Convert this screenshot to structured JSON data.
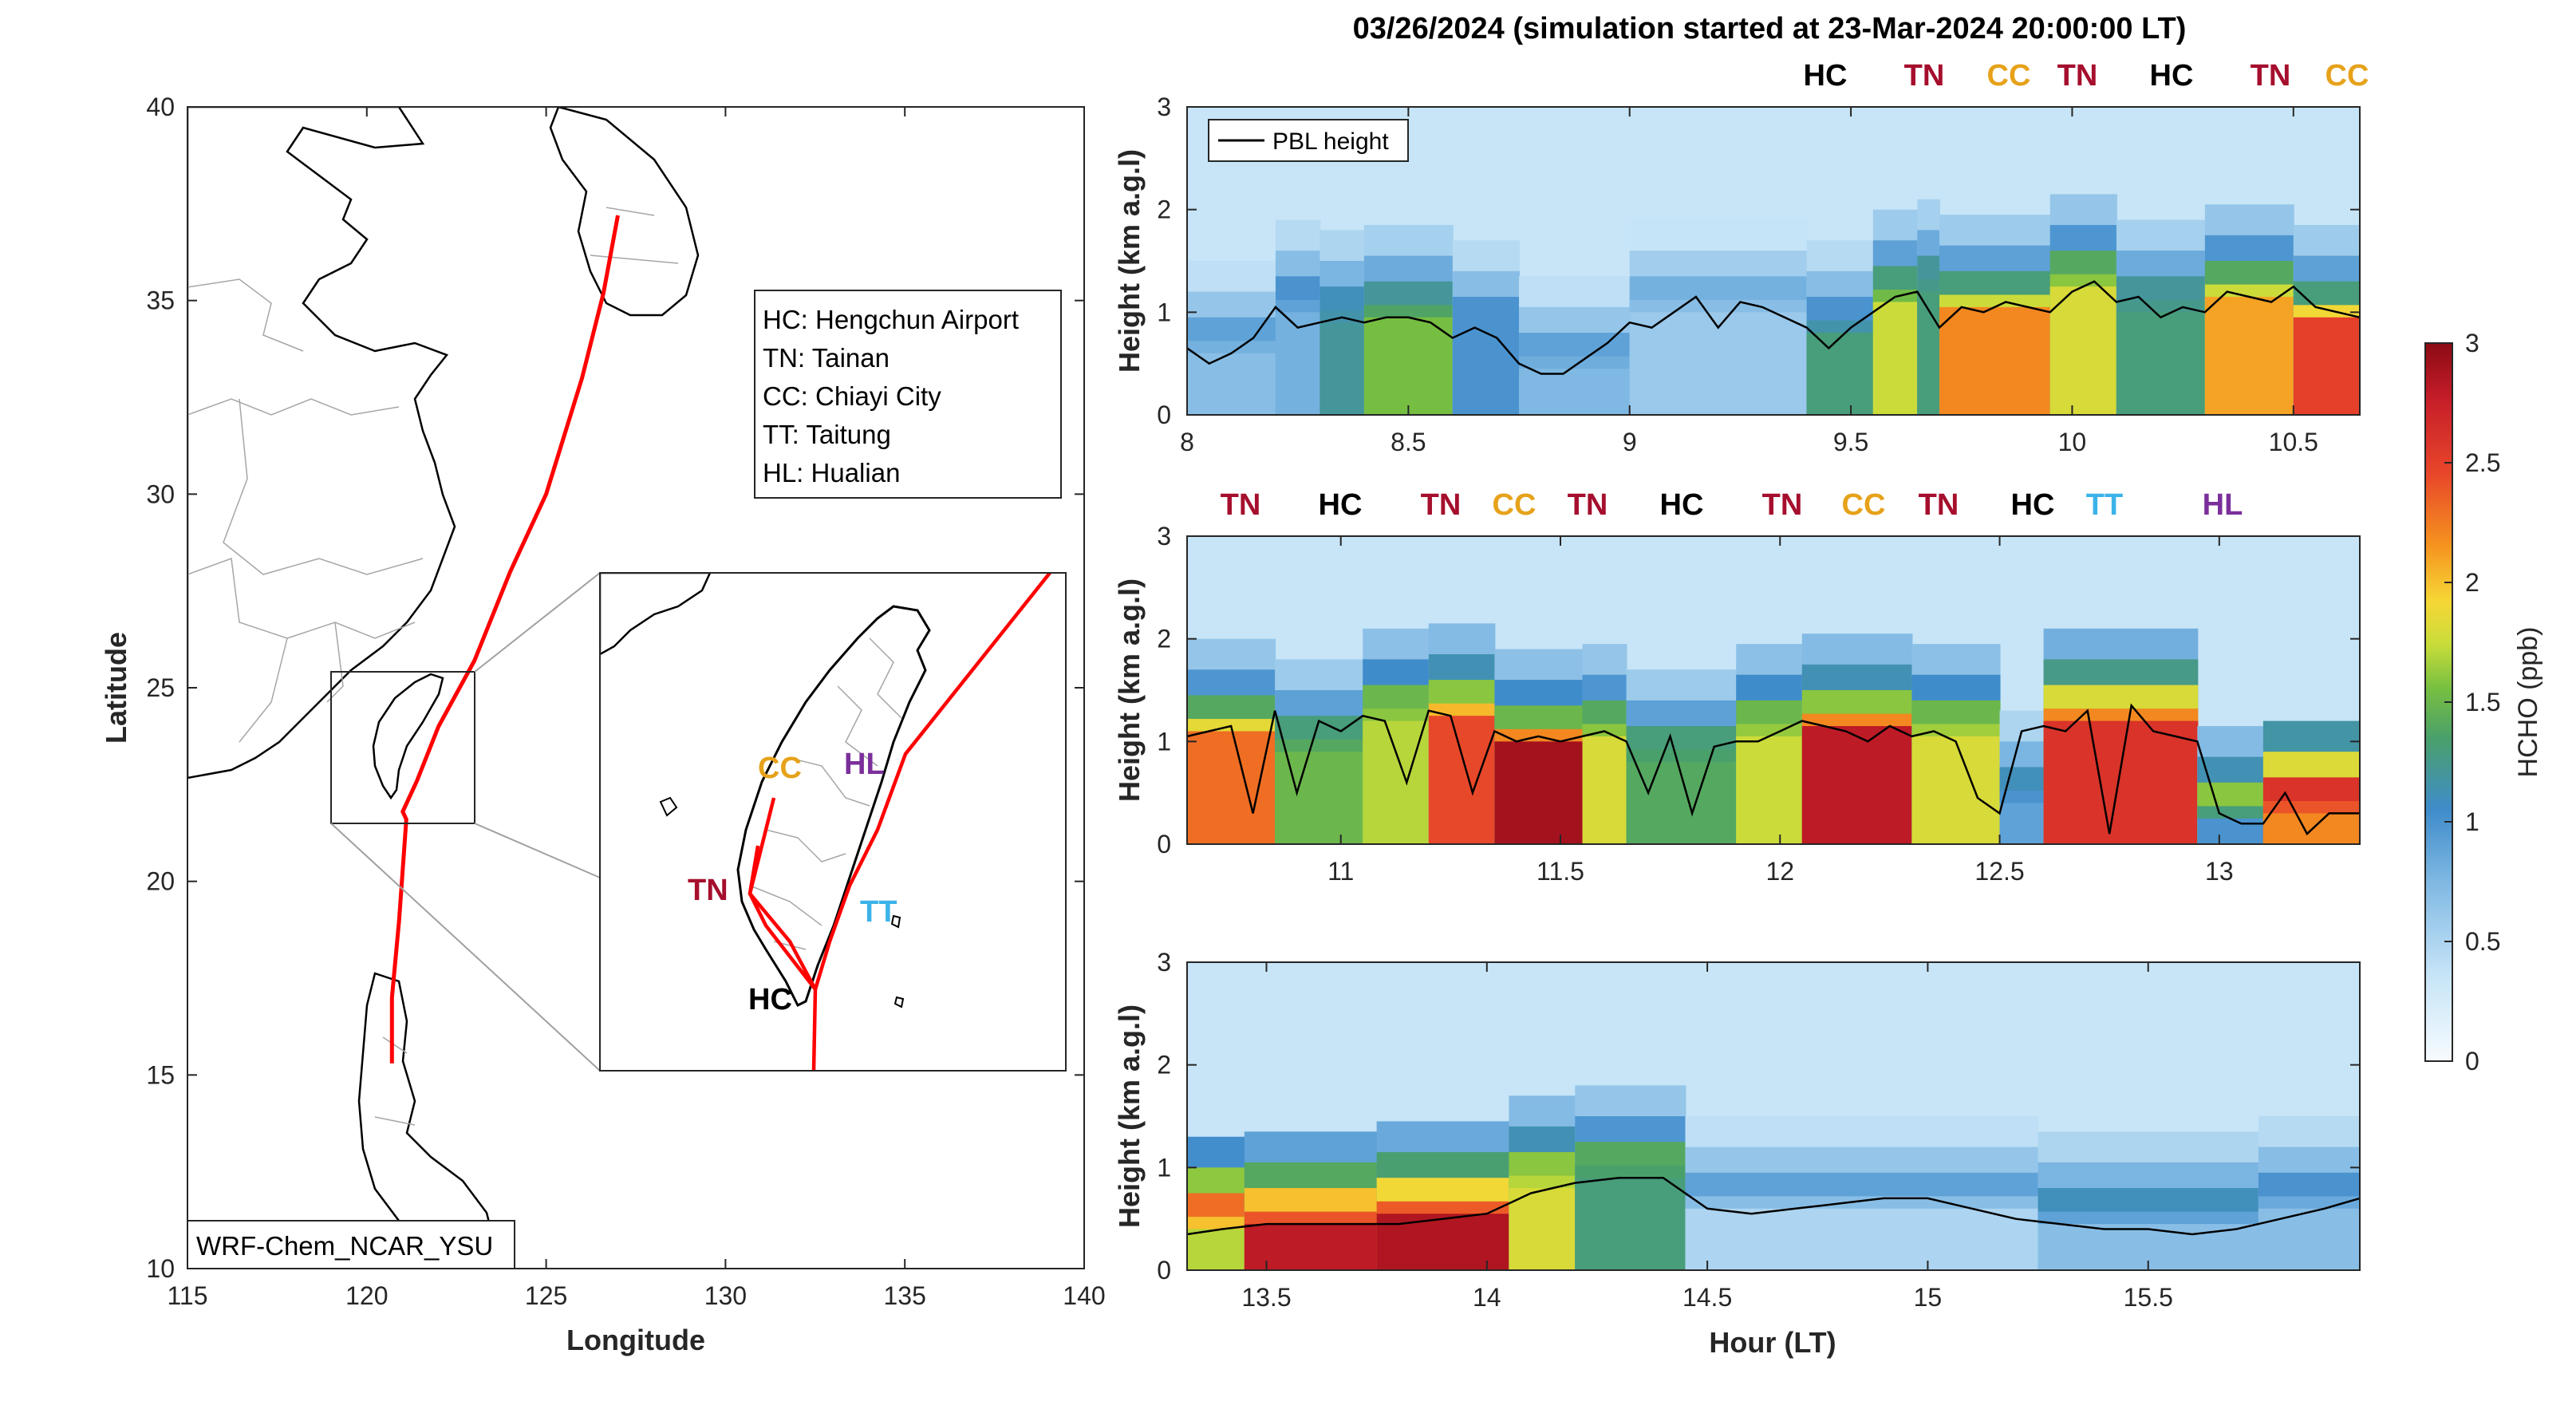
{
  "title": "03/26/2024 (simulation started at 23-Mar-2024 20:00:00 LT)",
  "colors": {
    "HC": "#000000",
    "TN": "#a50f2d",
    "CC": "#e6a21a",
    "TT": "#3bb3e8",
    "HL": "#7b2f9b",
    "track": "#ff0000",
    "pbl": "#000000"
  },
  "map": {
    "xlabel": "Longitude",
    "ylabel": "Latitude",
    "xlim": [
      115,
      140
    ],
    "ylim": [
      10,
      40
    ],
    "x_ticks": [
      "115",
      "120",
      "125",
      "130",
      "135",
      "140"
    ],
    "y_ticks": [
      "10",
      "15",
      "20",
      "25",
      "30",
      "35",
      "40"
    ],
    "model_label": "WRF-Chem_NCAR_YSU",
    "site_legend": [
      "HC: Hengchun Airport",
      "TN: Tainan",
      "CC: Chiayi City",
      "TT: Taitung",
      "HL: Hualian"
    ],
    "inset_sites": [
      {
        "code": "CC",
        "color_key": "CC"
      },
      {
        "code": "HL",
        "color_key": "HL"
      },
      {
        "code": "TN",
        "color_key": "TN"
      },
      {
        "code": "TT",
        "color_key": "TT"
      },
      {
        "code": "HC",
        "color_key": "HC"
      }
    ],
    "track": [
      [
        127.0,
        37.2
      ],
      [
        126.6,
        35.2
      ],
      [
        126.0,
        33.0
      ],
      [
        125.0,
        30.0
      ],
      [
        124.0,
        28.0
      ],
      [
        123.0,
        25.7
      ],
      [
        122.0,
        24.0
      ],
      [
        121.4,
        22.6
      ],
      [
        121.0,
        21.8
      ],
      [
        121.1,
        21.6
      ],
      [
        120.9,
        19.0
      ],
      [
        120.7,
        17.0
      ],
      [
        120.7,
        15.3
      ]
    ],
    "inset_track": [
      [
        139.0,
        28.5
      ],
      [
        125.0,
        24.6
      ],
      [
        122.0,
        23.4
      ],
      [
        121.1,
        22.0
      ],
      [
        120.9,
        21.4
      ]
    ]
  },
  "chart_data": [
    {
      "type": "heatmap",
      "xlabel": "",
      "ylabel": "Height (km a.g.l)",
      "xlim": [
        8,
        10.65
      ],
      "ylim": [
        0,
        3
      ],
      "x_ticks": [
        "8",
        "8.5",
        "9",
        "9.5",
        "10",
        "10.5"
      ],
      "y_ticks": [
        "0",
        "1",
        "2",
        "3"
      ],
      "legend": "PBL height",
      "sites": [
        "HC",
        "TN",
        "CC",
        "TN",
        "HC",
        "TN",
        "CC"
      ],
      "pbl_x": [
        8.0,
        8.05,
        8.1,
        8.15,
        8.2,
        8.25,
        8.3,
        8.35,
        8.4,
        8.45,
        8.5,
        8.55,
        8.6,
        8.65,
        8.7,
        8.75,
        8.8,
        8.85,
        8.9,
        8.95,
        9.0,
        9.05,
        9.1,
        9.15,
        9.2,
        9.25,
        9.3,
        9.35,
        9.4,
        9.45,
        9.5,
        9.55,
        9.6,
        9.65,
        9.7,
        9.75,
        9.8,
        9.85,
        9.9,
        9.95,
        10.0,
        10.05,
        10.1,
        10.15,
        10.2,
        10.25,
        10.3,
        10.35,
        10.4,
        10.45,
        10.5,
        10.55,
        10.6,
        10.65
      ],
      "pbl_y": [
        0.65,
        0.5,
        0.6,
        0.75,
        1.05,
        0.85,
        0.9,
        0.95,
        0.9,
        0.95,
        0.95,
        0.9,
        0.75,
        0.85,
        0.75,
        0.5,
        0.4,
        0.4,
        0.55,
        0.7,
        0.9,
        0.85,
        1.0,
        1.15,
        0.85,
        1.1,
        1.05,
        0.95,
        0.85,
        0.65,
        0.85,
        1.0,
        1.15,
        1.2,
        0.85,
        1.05,
        1.0,
        1.1,
        1.05,
        1.0,
        1.2,
        1.3,
        1.1,
        1.15,
        0.95,
        1.05,
        1.0,
        1.2,
        1.15,
        1.1,
        1.25,
        1.05,
        1.0,
        0.95
      ],
      "columns": [
        {
          "x0": 8.0,
          "x1": 8.2,
          "pbl": 0.6,
          "core": 0.7,
          "top": 0.9
        },
        {
          "x0": 8.2,
          "x1": 8.3,
          "pbl": 1.0,
          "core": 0.8,
          "top": 1.0
        },
        {
          "x0": 8.3,
          "x1": 8.4,
          "pbl": 0.9,
          "core": 1.2,
          "top": 1.1
        },
        {
          "x0": 8.4,
          "x1": 8.6,
          "pbl": 0.95,
          "core": 1.55,
          "top": 1.2
        },
        {
          "x0": 8.6,
          "x1": 8.75,
          "pbl": 0.8,
          "core": 1.0,
          "top": 1.0
        },
        {
          "x0": 8.75,
          "x1": 9.0,
          "pbl": 0.45,
          "core": 0.75,
          "top": 0.9
        },
        {
          "x0": 9.0,
          "x1": 9.4,
          "pbl": 1.0,
          "core": 0.6,
          "top": 0.8
        },
        {
          "x0": 9.4,
          "x1": 9.55,
          "pbl": 0.8,
          "core": 1.3,
          "top": 1.0
        },
        {
          "x0": 9.55,
          "x1": 9.65,
          "pbl": 1.1,
          "core": 1.75,
          "top": 1.3
        },
        {
          "x0": 9.65,
          "x1": 9.7,
          "pbl": 1.2,
          "core": 1.3,
          "top": 1.2
        },
        {
          "x0": 9.7,
          "x1": 9.95,
          "pbl": 1.05,
          "core": 2.2,
          "top": 1.3
        },
        {
          "x0": 9.95,
          "x1": 10.1,
          "pbl": 1.25,
          "core": 1.8,
          "top": 1.4
        },
        {
          "x0": 10.1,
          "x1": 10.3,
          "pbl": 1.0,
          "core": 1.3,
          "top": 1.2
        },
        {
          "x0": 10.3,
          "x1": 10.5,
          "pbl": 1.15,
          "core": 2.1,
          "top": 1.4
        },
        {
          "x0": 10.5,
          "x1": 10.65,
          "pbl": 0.95,
          "core": 2.5,
          "top": 1.3
        }
      ]
    },
    {
      "type": "heatmap",
      "xlabel": "",
      "ylabel": "Height (km a.g.l)",
      "xlim": [
        10.65,
        13.32
      ],
      "ylim": [
        0,
        3
      ],
      "x_ticks": [
        "11",
        "11.5",
        "12",
        "12.5",
        "13"
      ],
      "y_ticks": [
        "0",
        "1",
        "2",
        "3"
      ],
      "sites": [
        "TN",
        "HC",
        "TN",
        "CC",
        "TN",
        "HC",
        "TN",
        "CC",
        "TN",
        "HC",
        "TT",
        "HL"
      ],
      "pbl_x": [
        10.65,
        10.7,
        10.75,
        10.8,
        10.85,
        10.9,
        10.95,
        11.0,
        11.05,
        11.1,
        11.15,
        11.2,
        11.25,
        11.3,
        11.35,
        11.4,
        11.45,
        11.5,
        11.55,
        11.6,
        11.65,
        11.7,
        11.75,
        11.8,
        11.85,
        11.9,
        11.95,
        12.0,
        12.05,
        12.1,
        12.15,
        12.2,
        12.25,
        12.3,
        12.35,
        12.4,
        12.45,
        12.5,
        12.55,
        12.6,
        12.65,
        12.7,
        12.75,
        12.8,
        12.85,
        12.9,
        12.95,
        13.0,
        13.05,
        13.1,
        13.15,
        13.2,
        13.25,
        13.32
      ],
      "pbl_y": [
        1.05,
        1.1,
        1.15,
        0.3,
        1.3,
        0.5,
        1.2,
        1.1,
        1.25,
        1.2,
        0.6,
        1.3,
        1.25,
        0.5,
        1.1,
        1.0,
        1.05,
        1.0,
        1.05,
        1.1,
        1.0,
        0.5,
        1.05,
        0.3,
        0.95,
        1.0,
        1.0,
        1.1,
        1.2,
        1.15,
        1.1,
        1.0,
        1.15,
        1.05,
        1.1,
        1.0,
        0.45,
        0.3,
        1.1,
        1.15,
        1.1,
        1.3,
        0.1,
        1.35,
        1.1,
        1.05,
        1.0,
        0.3,
        0.2,
        0.2,
        0.5,
        0.1,
        0.3,
        0.3
      ],
      "columns": [
        {
          "x0": 10.65,
          "x1": 10.85,
          "pbl": 1.1,
          "core": 2.3,
          "top": 1.4
        },
        {
          "x0": 10.85,
          "x1": 11.05,
          "pbl": 0.9,
          "core": 1.5,
          "top": 1.3
        },
        {
          "x0": 11.05,
          "x1": 11.2,
          "pbl": 1.2,
          "core": 1.7,
          "top": 1.5
        },
        {
          "x0": 11.2,
          "x1": 11.35,
          "pbl": 1.25,
          "core": 2.45,
          "top": 1.6
        },
        {
          "x0": 11.35,
          "x1": 11.55,
          "pbl": 1.0,
          "core": 2.9,
          "top": 1.5
        },
        {
          "x0": 11.55,
          "x1": 11.65,
          "pbl": 1.05,
          "core": 1.8,
          "top": 1.4
        },
        {
          "x0": 11.65,
          "x1": 11.9,
          "pbl": 0.8,
          "core": 1.4,
          "top": 1.3
        },
        {
          "x0": 11.9,
          "x1": 12.05,
          "pbl": 1.05,
          "core": 1.75,
          "top": 1.5
        },
        {
          "x0": 12.05,
          "x1": 12.3,
          "pbl": 1.15,
          "core": 2.8,
          "top": 1.6
        },
        {
          "x0": 12.3,
          "x1": 12.5,
          "pbl": 1.05,
          "core": 1.8,
          "top": 1.5
        },
        {
          "x0": 12.5,
          "x1": 12.6,
          "pbl": 0.4,
          "core": 0.9,
          "top": 1.1
        },
        {
          "x0": 12.6,
          "x1": 12.95,
          "pbl": 1.2,
          "core": 2.6,
          "top": 1.8
        },
        {
          "x0": 12.95,
          "x1": 13.1,
          "pbl": 0.25,
          "core": 1.0,
          "top": 1.6
        },
        {
          "x0": 13.1,
          "x1": 13.32,
          "pbl": 0.3,
          "core": 2.2,
          "top": 2.6
        }
      ]
    },
    {
      "type": "heatmap",
      "xlabel": "Hour (LT)",
      "ylabel": "Height (km a.g.l)",
      "xlim": [
        13.32,
        15.98
      ],
      "ylim": [
        0,
        3
      ],
      "x_ticks": [
        "13.5",
        "14",
        "14.5",
        "15",
        "15.5"
      ],
      "y_ticks": [
        "0",
        "1",
        "2",
        "3"
      ],
      "sites": [],
      "pbl_x": [
        13.32,
        13.4,
        13.5,
        13.6,
        13.7,
        13.8,
        13.9,
        14.0,
        14.1,
        14.2,
        14.3,
        14.4,
        14.5,
        14.6,
        14.7,
        14.8,
        14.9,
        15.0,
        15.1,
        15.2,
        15.3,
        15.4,
        15.45,
        15.5,
        15.6,
        15.7,
        15.8,
        15.9,
        15.98
      ],
      "pbl_y": [
        0.35,
        0.4,
        0.45,
        0.45,
        0.45,
        0.45,
        0.5,
        0.55,
        0.75,
        0.85,
        0.9,
        0.9,
        0.6,
        0.55,
        0.6,
        0.65,
        0.7,
        0.7,
        0.6,
        0.5,
        0.45,
        0.4,
        0.4,
        0.4,
        0.35,
        0.4,
        0.5,
        0.6,
        0.7
      ],
      "columns": [
        {
          "x0": 13.32,
          "x1": 13.45,
          "pbl": 0.4,
          "core": 1.7,
          "top": 2.3
        },
        {
          "x0": 13.45,
          "x1": 13.75,
          "pbl": 0.45,
          "core": 2.8,
          "top": 2.0
        },
        {
          "x0": 13.75,
          "x1": 14.05,
          "pbl": 0.55,
          "core": 2.85,
          "top": 1.9
        },
        {
          "x0": 14.05,
          "x1": 14.2,
          "pbl": 0.8,
          "core": 1.8,
          "top": 1.6
        },
        {
          "x0": 14.2,
          "x1": 14.45,
          "pbl": 0.9,
          "core": 1.3,
          "top": 1.4
        },
        {
          "x0": 14.45,
          "x1": 15.25,
          "pbl": 0.6,
          "core": 0.5,
          "top": 0.9
        },
        {
          "x0": 15.25,
          "x1": 15.75,
          "pbl": 0.45,
          "core": 0.7,
          "top": 1.1
        },
        {
          "x0": 15.75,
          "x1": 15.98,
          "pbl": 0.6,
          "core": 0.7,
          "top": 1.0
        }
      ]
    }
  ],
  "colorbar": {
    "label": "HCHO (ppb)",
    "range": [
      0,
      3
    ],
    "ticks": [
      "0",
      "0.5",
      "1",
      "1.5",
      "2",
      "2.5",
      "3"
    ]
  }
}
